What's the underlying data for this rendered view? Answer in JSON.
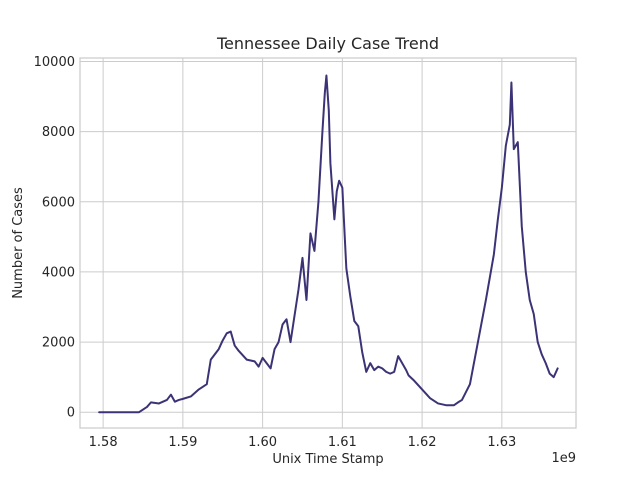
{
  "chart_data": {
    "type": "line",
    "title": "Tennessee Daily Case Trend",
    "xlabel": "Unix Time Stamp",
    "ylabel": "Number of Cases",
    "x_offset_label": "1e9",
    "x_ticks": [
      "1.58",
      "1.59",
      "1.60",
      "1.61",
      "1.62",
      "1.63"
    ],
    "y_ticks": [
      "0",
      "2000",
      "4000",
      "6000",
      "8000",
      "10000"
    ],
    "xlim": [
      1.5771,
      1.6393
    ],
    "ylim": [
      -450,
      10100
    ],
    "grid": true,
    "series_color": "#3b3375",
    "series": [
      {
        "x": [
          1.5795,
          1.58,
          1.581,
          1.582,
          1.583,
          1.5845,
          1.5855,
          1.586,
          1.587,
          1.588,
          1.5885,
          1.589,
          1.5895,
          1.59,
          1.591,
          1.592,
          1.593,
          1.5935,
          1.594,
          1.5945,
          1.595,
          1.5955,
          1.596,
          1.5965,
          1.597,
          1.598,
          1.599,
          1.5995,
          1.6,
          1.6005,
          1.601,
          1.6015,
          1.602,
          1.6025,
          1.603,
          1.6035,
          1.604,
          1.6045,
          1.605,
          1.6055,
          1.606,
          1.6065,
          1.607,
          1.6075,
          1.6078,
          1.608,
          1.6083,
          1.6085,
          1.609,
          1.6093,
          1.6096,
          1.61,
          1.6103,
          1.6105,
          1.611,
          1.6115,
          1.612,
          1.6125,
          1.613,
          1.6135,
          1.614,
          1.6145,
          1.615,
          1.6155,
          1.616,
          1.6165,
          1.617,
          1.618,
          1.6183,
          1.619,
          1.62,
          1.621,
          1.622,
          1.623,
          1.624,
          1.6245,
          1.625,
          1.626,
          1.627,
          1.628,
          1.629,
          1.6295,
          1.63,
          1.6305,
          1.631,
          1.6312,
          1.6315,
          1.632,
          1.6325,
          1.633,
          1.6335,
          1.634,
          1.6345,
          1.635,
          1.6355,
          1.636,
          1.6365,
          1.637
        ],
        "values": [
          0,
          0,
          0,
          0,
          0,
          0,
          150,
          280,
          250,
          350,
          500,
          300,
          350,
          380,
          450,
          650,
          800,
          1500,
          1650,
          1800,
          2050,
          2250,
          2300,
          1900,
          1750,
          1500,
          1450,
          1300,
          1550,
          1400,
          1250,
          1800,
          2000,
          2500,
          2650,
          2000,
          2750,
          3500,
          4400,
          3200,
          5100,
          4600,
          6000,
          8000,
          9100,
          9600,
          8600,
          7100,
          5500,
          6300,
          6600,
          6400,
          5000,
          4100,
          3300,
          2600,
          2450,
          1700,
          1150,
          1400,
          1200,
          1300,
          1250,
          1150,
          1100,
          1150,
          1600,
          1200,
          1050,
          900,
          650,
          400,
          250,
          200,
          200,
          280,
          350,
          800,
          2000,
          3200,
          4500,
          5500,
          6400,
          7600,
          8200,
          9400,
          7500,
          7700,
          5300,
          4000,
          3200,
          2800,
          2000,
          1650,
          1400,
          1100,
          1000,
          1250
        ]
      }
    ]
  }
}
